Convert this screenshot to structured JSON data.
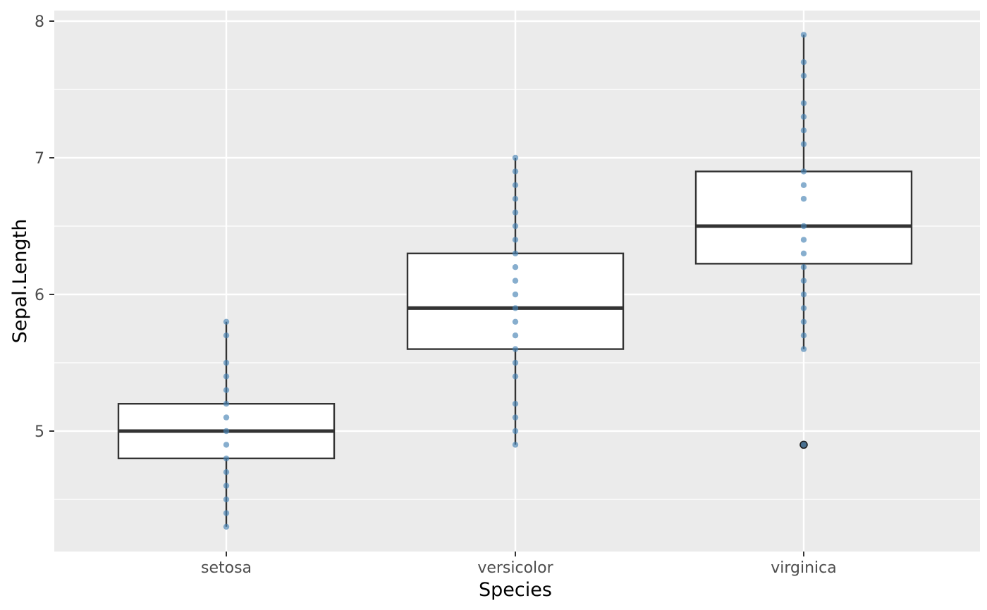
{
  "chart_data": {
    "type": "boxplot",
    "xlabel": "Species",
    "ylabel": "Sepal.Length",
    "categories": [
      "setosa",
      "versicolor",
      "virginica"
    ],
    "ylim": [
      4.1,
      8.08
    ],
    "y_ticks": [
      5,
      6,
      7,
      8
    ],
    "y_tick_labels": [
      "5",
      "6",
      "7",
      "8"
    ],
    "grid": true,
    "colors": {
      "panel_background": "#ebebeb",
      "grid_line": "#ffffff",
      "box_fill": "#ffffff",
      "box_line": "#333333",
      "jitter_point": "#4682b4",
      "outlier_fill": "#4d4d4d"
    },
    "boxes": [
      {
        "category": "setosa",
        "q1": 4.8,
        "median": 5.0,
        "q3": 5.2,
        "whisker_low": 4.3,
        "whisker_high": 5.8,
        "outliers": []
      },
      {
        "category": "versicolor",
        "q1": 5.6,
        "median": 5.9,
        "q3": 6.3,
        "whisker_low": 4.9,
        "whisker_high": 7.0,
        "outliers": []
      },
      {
        "category": "virginica",
        "q1": 6.225,
        "median": 6.5,
        "q3": 6.9,
        "whisker_low": 5.6,
        "whisker_high": 7.9,
        "outliers": [
          4.9
        ]
      }
    ],
    "points": [
      {
        "category": "setosa",
        "values": [
          4.3,
          4.4,
          4.5,
          4.6,
          4.7,
          4.8,
          4.9,
          5.0,
          5.1,
          5.2,
          5.3,
          5.4,
          5.5,
          5.7,
          5.8
        ]
      },
      {
        "category": "versicolor",
        "values": [
          4.9,
          5.0,
          5.1,
          5.2,
          5.4,
          5.5,
          5.6,
          5.7,
          5.8,
          5.9,
          6.0,
          6.1,
          6.2,
          6.3,
          6.4,
          6.5,
          6.6,
          6.7,
          6.8,
          6.9,
          7.0
        ]
      },
      {
        "category": "virginica",
        "values": [
          4.9,
          5.6,
          5.7,
          5.8,
          5.9,
          6.0,
          6.1,
          6.2,
          6.3,
          6.4,
          6.5,
          6.7,
          6.8,
          6.9,
          7.1,
          7.2,
          7.3,
          7.4,
          7.6,
          7.7,
          7.9
        ]
      }
    ]
  }
}
